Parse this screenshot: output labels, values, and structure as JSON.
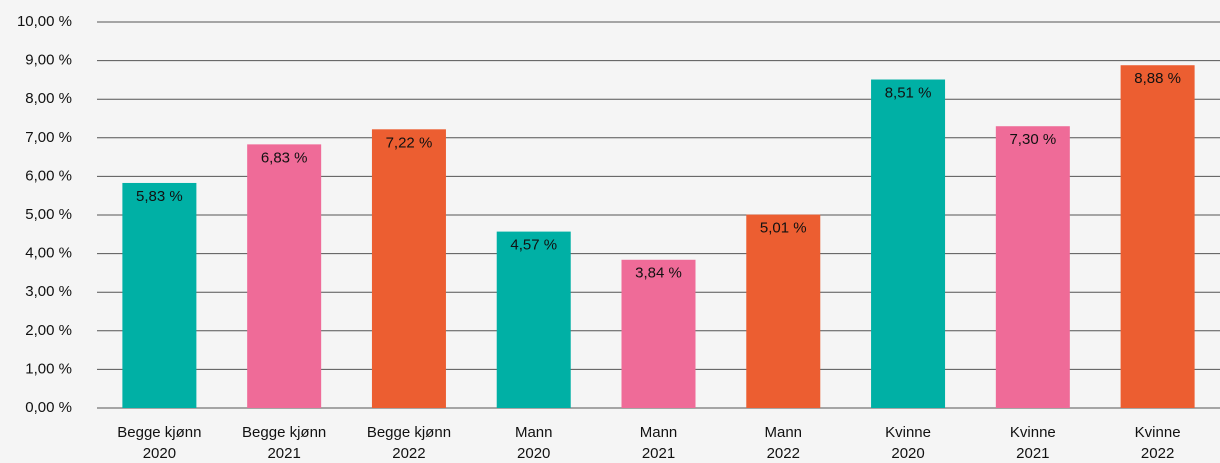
{
  "chart_data": {
    "type": "bar",
    "categories": [
      "Begge kjønn 2020",
      "Begge kjønn 2021",
      "Begge kjønn 2022",
      "Mann 2020",
      "Mann 2021",
      "Mann 2022",
      "Kvinne 2020",
      "Kvinne 2021",
      "Kvinne 2022"
    ],
    "values": [
      5.83,
      6.83,
      7.22,
      4.57,
      3.84,
      5.01,
      8.51,
      7.3,
      8.88
    ],
    "value_labels": [
      "5,83 %",
      "6,83 %",
      "7,22 %",
      "4,57 %",
      "3,84 %",
      "5,01 %",
      "8,51 %",
      "7,30 %",
      "8,88 %"
    ],
    "colors": [
      "#00b0a5",
      "#ef6b98",
      "#ec5e31",
      "#00b0a5",
      "#ef6b98",
      "#ec5e31",
      "#00b0a5",
      "#ef6b98",
      "#ec5e31"
    ],
    "ylim": [
      0,
      10
    ],
    "yticks": [
      {
        "value": 0,
        "label": "0,00 %"
      },
      {
        "value": 1,
        "label": "1,00 %"
      },
      {
        "value": 2,
        "label": "2,00 %"
      },
      {
        "value": 3,
        "label": "3,00 %"
      },
      {
        "value": 4,
        "label": "4,00 %"
      },
      {
        "value": 5,
        "label": "5,00 %"
      },
      {
        "value": 6,
        "label": "6,00 %"
      },
      {
        "value": 7,
        "label": "7,00 %"
      },
      {
        "value": 8,
        "label": "8,00 %"
      },
      {
        "value": 9,
        "label": "9,00 %"
      },
      {
        "value": 10,
        "label": "10,00 %"
      }
    ],
    "grid": true
  }
}
